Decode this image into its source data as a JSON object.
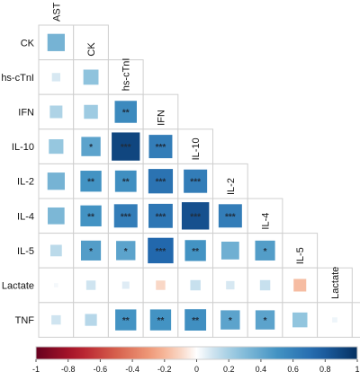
{
  "chart_data": {
    "type": "heatmap",
    "title": "",
    "subtitle": "",
    "variables": [
      "AST",
      "CK",
      "hs-cTnI",
      "IFN",
      "IL-10",
      "IL-2",
      "IL-4",
      "IL-5",
      "Lactate",
      "TNF"
    ],
    "row_labels": [
      "CK",
      "hs-cTnI",
      "IFN",
      "IL-10",
      "IL-2",
      "IL-4",
      "IL-5",
      "Lactate",
      "TNF"
    ],
    "column_labels": [
      "AST",
      "CK",
      "hs-cTnI",
      "IFN",
      "IL-10",
      "IL-2",
      "IL-4",
      "IL-5",
      "Lactate"
    ],
    "cells": [
      {
        "row": "CK",
        "col": "AST",
        "r": 0.34,
        "sig": ""
      },
      {
        "row": "hs-cTnI",
        "col": "AST",
        "r": 0.08,
        "sig": ""
      },
      {
        "row": "hs-cTnI",
        "col": "CK",
        "r": 0.26,
        "sig": ""
      },
      {
        "row": "IFN",
        "col": "AST",
        "r": 0.18,
        "sig": ""
      },
      {
        "row": "IFN",
        "col": "CK",
        "r": 0.22,
        "sig": ""
      },
      {
        "row": "IFN",
        "col": "hs-cTnI",
        "r": 0.55,
        "sig": "**"
      },
      {
        "row": "IL-10",
        "col": "AST",
        "r": 0.24,
        "sig": ""
      },
      {
        "row": "IL-10",
        "col": "CK",
        "r": 0.42,
        "sig": "*"
      },
      {
        "row": "IL-10",
        "col": "hs-cTnI",
        "r": 0.9,
        "sig": "***"
      },
      {
        "row": "IL-10",
        "col": "IFN",
        "r": 0.62,
        "sig": "***"
      },
      {
        "row": "IL-2",
        "col": "AST",
        "r": 0.34,
        "sig": ""
      },
      {
        "row": "IL-2",
        "col": "CK",
        "r": 0.5,
        "sig": "**"
      },
      {
        "row": "IL-2",
        "col": "hs-cTnI",
        "r": 0.52,
        "sig": "**"
      },
      {
        "row": "IL-2",
        "col": "IFN",
        "r": 0.68,
        "sig": "***"
      },
      {
        "row": "IL-2",
        "col": "IL-10",
        "r": 0.62,
        "sig": "***"
      },
      {
        "row": "IL-4",
        "col": "AST",
        "r": 0.32,
        "sig": ""
      },
      {
        "row": "IL-4",
        "col": "CK",
        "r": 0.5,
        "sig": "**"
      },
      {
        "row": "IL-4",
        "col": "hs-cTnI",
        "r": 0.62,
        "sig": "***"
      },
      {
        "row": "IL-4",
        "col": "IFN",
        "r": 0.66,
        "sig": "***"
      },
      {
        "row": "IL-4",
        "col": "IL-10",
        "r": 0.85,
        "sig": "***"
      },
      {
        "row": "IL-4",
        "col": "IL-2",
        "r": 0.62,
        "sig": "***"
      },
      {
        "row": "IL-5",
        "col": "AST",
        "r": 0.15,
        "sig": ""
      },
      {
        "row": "IL-5",
        "col": "CK",
        "r": 0.45,
        "sig": "*"
      },
      {
        "row": "IL-5",
        "col": "hs-cTnI",
        "r": 0.42,
        "sig": "*"
      },
      {
        "row": "IL-5",
        "col": "IFN",
        "r": 0.74,
        "sig": "***"
      },
      {
        "row": "IL-5",
        "col": "IL-10",
        "r": 0.5,
        "sig": "**"
      },
      {
        "row": "IL-5",
        "col": "IL-2",
        "r": 0.36,
        "sig": ""
      },
      {
        "row": "IL-5",
        "col": "IL-4",
        "r": 0.45,
        "sig": "*"
      },
      {
        "row": "Lactate",
        "col": "AST",
        "r": 0.02,
        "sig": ""
      },
      {
        "row": "Lactate",
        "col": "CK",
        "r": 0.1,
        "sig": ""
      },
      {
        "row": "Lactate",
        "col": "hs-cTnI",
        "r": 0.06,
        "sig": ""
      },
      {
        "row": "Lactate",
        "col": "IFN",
        "r": -0.1,
        "sig": ""
      },
      {
        "row": "Lactate",
        "col": "IL-10",
        "r": 0.12,
        "sig": ""
      },
      {
        "row": "Lactate",
        "col": "IL-2",
        "r": 0.08,
        "sig": ""
      },
      {
        "row": "Lactate",
        "col": "IL-4",
        "r": 0.12,
        "sig": ""
      },
      {
        "row": "Lactate",
        "col": "IL-5",
        "r": -0.18,
        "sig": ""
      },
      {
        "row": "TNF",
        "col": "AST",
        "r": 0.1,
        "sig": ""
      },
      {
        "row": "TNF",
        "col": "CK",
        "r": 0.16,
        "sig": ""
      },
      {
        "row": "TNF",
        "col": "hs-cTnI",
        "r": 0.5,
        "sig": "**"
      },
      {
        "row": "TNF",
        "col": "IFN",
        "r": 0.5,
        "sig": "**"
      },
      {
        "row": "TNF",
        "col": "IL-10",
        "r": 0.52,
        "sig": "**"
      },
      {
        "row": "TNF",
        "col": "IL-2",
        "r": 0.42,
        "sig": "*"
      },
      {
        "row": "TNF",
        "col": "IL-4",
        "r": 0.42,
        "sig": "*"
      },
      {
        "row": "TNF",
        "col": "IL-5",
        "r": 0.25,
        "sig": ""
      },
      {
        "row": "TNF",
        "col": "Lactate",
        "r": 0.03,
        "sig": ""
      }
    ],
    "colorbar": {
      "range": [
        -1,
        1
      ],
      "tick_labels": [
        "-1",
        "-0.8",
        "-0.6",
        "-0.4",
        "-0.2",
        "0",
        "0.2",
        "0.4",
        "0.6",
        "0.8",
        "1"
      ],
      "low_color": "#67001f",
      "mid_color": "#ffffff",
      "high_color": "#053061"
    },
    "grid": true
  }
}
